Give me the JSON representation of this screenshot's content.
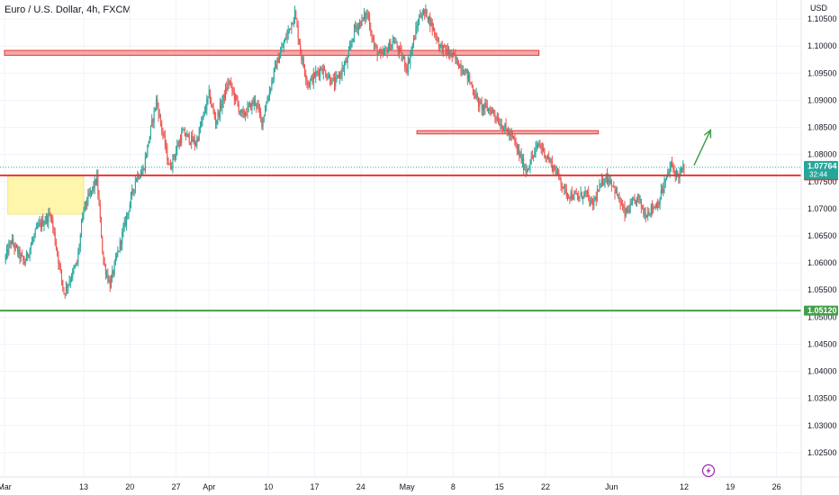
{
  "header": {
    "symbol_title": "Euro / U.S. Dollar, 4h, FXCM"
  },
  "currency_label": "USD",
  "colors": {
    "up": "#26a69a",
    "down": "#ef5350",
    "resistance_line": "#e53935",
    "support_line": "#43a047",
    "zone_red": "#f28b8b",
    "zone_yellow": "#fff59d",
    "arrow": "#43a047",
    "current_price_badge": "#26a69a",
    "grid": "#f0f3fa"
  },
  "price_badges": {
    "current": "1.07764",
    "countdown": "32:44",
    "resistance": "1.07614",
    "support": "1.05120"
  },
  "event_icon": "lightning-icon",
  "chart_data": {
    "type": "candlestick",
    "title": "Euro / U.S. Dollar, 4h, FXCM",
    "xlabel": "",
    "ylabel": "USD",
    "ylim": [
      1.0205,
      1.1085
    ],
    "grid": true,
    "y_ticks": [
      "1.10500",
      "1.10000",
      "1.09500",
      "1.09000",
      "1.08500",
      "1.08000",
      "1.07500",
      "1.07000",
      "1.06500",
      "1.06000",
      "1.05500",
      "1.05000",
      "1.04500",
      "1.04000",
      "1.03500",
      "1.03000",
      "1.02500"
    ],
    "x_ticks": [
      {
        "label": "Mar",
        "day": 0
      },
      {
        "label": "13",
        "day": 12
      },
      {
        "label": "20",
        "day": 19
      },
      {
        "label": "27",
        "day": 26
      },
      {
        "label": "Apr",
        "day": 31
      },
      {
        "label": "10",
        "day": 40
      },
      {
        "label": "17",
        "day": 47
      },
      {
        "label": "24",
        "day": 54
      },
      {
        "label": "May",
        "day": 61
      },
      {
        "label": "8",
        "day": 68
      },
      {
        "label": "15",
        "day": 75
      },
      {
        "label": "22",
        "day": 82
      },
      {
        "label": "Jun",
        "day": 92
      },
      {
        "label": "12",
        "day": 103
      },
      {
        "label": "19",
        "day": 110
      },
      {
        "label": "26",
        "day": 117
      }
    ],
    "anchors": [
      [
        0,
        1.0605
      ],
      [
        1,
        1.064
      ],
      [
        3,
        1.06
      ],
      [
        5,
        1.0665
      ],
      [
        7,
        1.069
      ],
      [
        9,
        1.0545
      ],
      [
        11,
        1.06
      ],
      [
        12,
        1.07
      ],
      [
        14,
        1.0755
      ],
      [
        15,
        1.06
      ],
      [
        16,
        1.056
      ],
      [
        18,
        1.066
      ],
      [
        20,
        1.076
      ],
      [
        21,
        1.077
      ],
      [
        23,
        1.09
      ],
      [
        25,
        1.0775
      ],
      [
        27,
        1.084
      ],
      [
        29,
        1.082
      ],
      [
        31,
        1.091
      ],
      [
        32,
        1.086
      ],
      [
        34,
        1.0935
      ],
      [
        36,
        1.087
      ],
      [
        38,
        1.09
      ],
      [
        39,
        1.086
      ],
      [
        41,
        1.096
      ],
      [
        44,
        1.106
      ],
      [
        45,
        1.098
      ],
      [
        46,
        1.093
      ],
      [
        48,
        1.096
      ],
      [
        50,
        1.093
      ],
      [
        52,
        1.0975
      ],
      [
        53,
        1.103
      ],
      [
        55,
        1.106
      ],
      [
        56,
        1.1
      ],
      [
        57,
        1.098
      ],
      [
        59,
        1.101
      ],
      [
        61,
        1.096
      ],
      [
        63,
        1.106
      ],
      [
        64,
        1.106
      ],
      [
        66,
        1.1
      ],
      [
        68,
        1.098
      ],
      [
        70,
        1.095
      ],
      [
        72,
        1.089
      ],
      [
        74,
        1.088
      ],
      [
        75,
        1.086
      ],
      [
        77,
        1.083
      ],
      [
        79,
        1.077
      ],
      [
        81,
        1.082
      ],
      [
        82,
        1.08
      ],
      [
        84,
        1.076
      ],
      [
        85,
        1.073
      ],
      [
        87,
        1.072
      ],
      [
        88,
        1.073
      ],
      [
        89,
        1.0705
      ],
      [
        91,
        1.076
      ],
      [
        92,
        1.075
      ],
      [
        94,
        1.069
      ],
      [
        96,
        1.072
      ],
      [
        97,
        1.069
      ],
      [
        99,
        1.071
      ],
      [
        101,
        1.078
      ],
      [
        102,
        1.076
      ],
      [
        103,
        1.0775
      ]
    ],
    "levels": [
      {
        "name": "resistance",
        "price": 1.07614
      },
      {
        "name": "support",
        "price": 1.0512
      }
    ],
    "zones": [
      {
        "name": "upper-supply-zone",
        "from_day": 0,
        "to_day": 81,
        "y_top": 1.0992,
        "y_bottom": 1.0983
      },
      {
        "name": "supply-zone",
        "from_day": 62.5,
        "to_day": 90,
        "y_top": 1.0844,
        "y_bottom": 1.0838
      },
      {
        "name": "demand-zone",
        "from_day": 0.5,
        "to_day": 12,
        "y_top": 1.0761,
        "y_bottom": 1.069
      }
    ],
    "projection": {
      "from_day": 104.5,
      "from_price": 1.078,
      "to_day": 107,
      "to_price": 1.0845
    }
  }
}
